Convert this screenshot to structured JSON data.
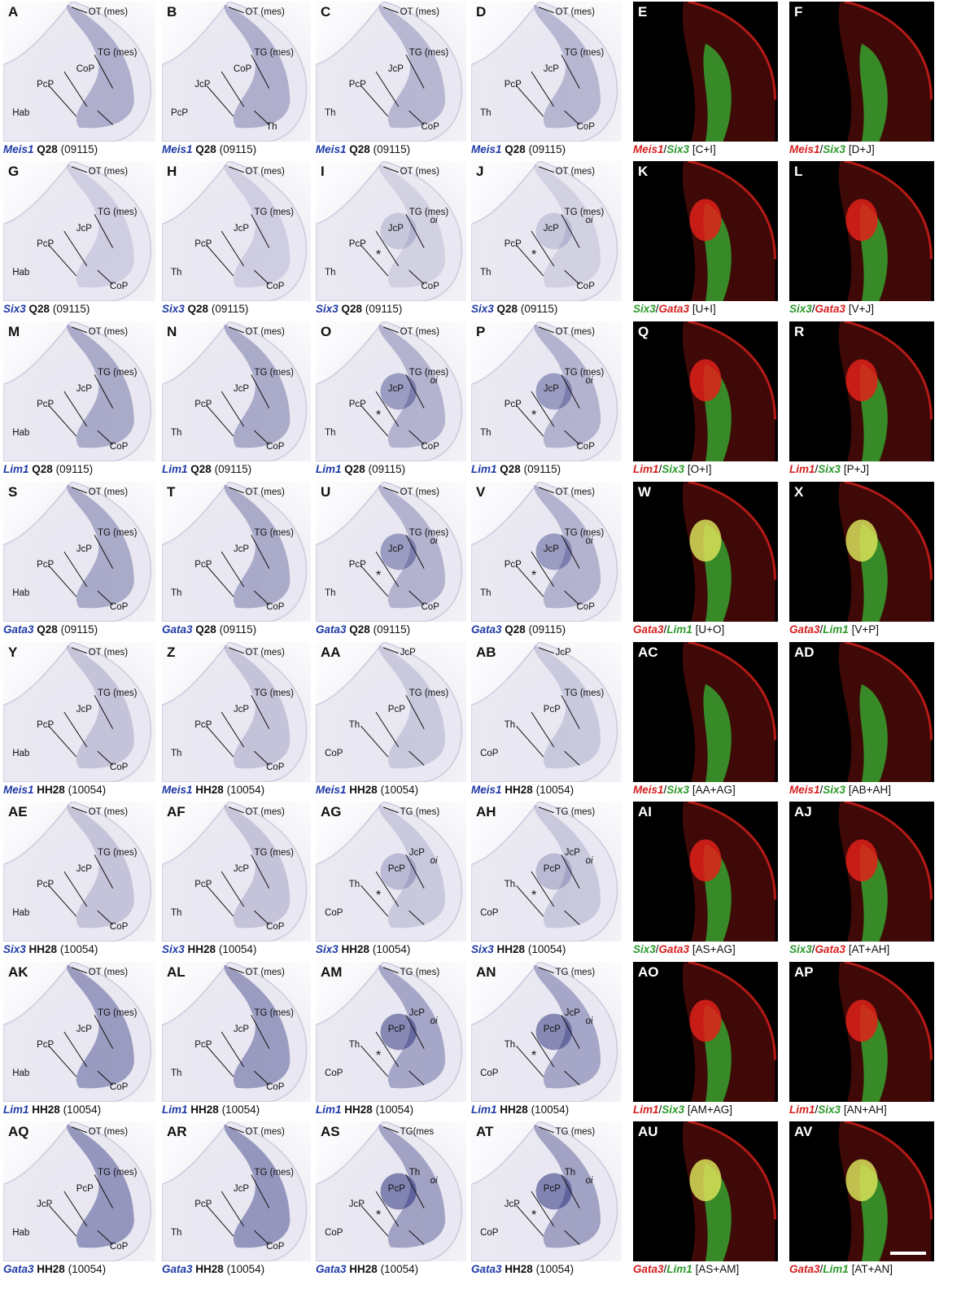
{
  "ish_rows": [
    {
      "panels": [
        {
          "letter": "A",
          "gene": "Meis1",
          "stage": "Q28",
          "num": "(09115)",
          "labels": [
            "OT (mes)",
            "TG (mes)",
            "CoP",
            "PcP",
            "Hab"
          ]
        },
        {
          "letter": "B",
          "gene": "Meis1",
          "stage": "Q28",
          "num": "(09115)",
          "labels": [
            "OT (mes)",
            "TG (mes)",
            "CoP",
            "JcP",
            "PcP",
            "Th"
          ]
        },
        {
          "letter": "C",
          "gene": "Meis1",
          "stage": "Q28",
          "num": "(09115)",
          "labels": [
            "OT (mes)",
            "TG (mes)",
            "JcP",
            "PcP",
            "Th",
            "CoP"
          ]
        },
        {
          "letter": "D",
          "gene": "Meis1",
          "stage": "Q28",
          "num": "(09115)",
          "labels": [
            "OT (mes)",
            "TG (mes)",
            "JcP",
            "PcP",
            "Th",
            "CoP"
          ]
        }
      ]
    },
    {
      "panels": [
        {
          "letter": "G",
          "gene": "Six3",
          "stage": "Q28",
          "num": "(09115)",
          "labels": [
            "OT (mes)",
            "TG (mes)",
            "JcP",
            "PcP",
            "Hab",
            "CoP"
          ]
        },
        {
          "letter": "H",
          "gene": "Six3",
          "stage": "Q28",
          "num": "(09115)",
          "labels": [
            "OT (mes)",
            "TG (mes)",
            "JcP",
            "PcP",
            "Th",
            "CoP"
          ]
        },
        {
          "letter": "I",
          "gene": "Six3",
          "stage": "Q28",
          "num": "(09115)",
          "labels": [
            "OT (mes)",
            "TG (mes)",
            "JcP",
            "PcP",
            "Th",
            "CoP"
          ]
        },
        {
          "letter": "J",
          "gene": "Six3",
          "stage": "Q28",
          "num": "(09115)",
          "labels": [
            "OT (mes)",
            "TG (mes)",
            "JcP",
            "PcP",
            "Th",
            "CoP"
          ]
        }
      ]
    },
    {
      "panels": [
        {
          "letter": "M",
          "gene": "Lim1",
          "stage": "Q28",
          "num": "(09115)",
          "labels": [
            "OT (mes)",
            "TG (mes)",
            "JcP",
            "PcP",
            "Hab",
            "CoP"
          ]
        },
        {
          "letter": "N",
          "gene": "Lim1",
          "stage": "Q28",
          "num": "(09115)",
          "labels": [
            "OT (mes)",
            "TG (mes)",
            "JcP",
            "PcP",
            "Th",
            "CoP"
          ]
        },
        {
          "letter": "O",
          "gene": "Lim1",
          "stage": "Q28",
          "num": "(09115)",
          "labels": [
            "OT (mes)",
            "TG (mes)",
            "JcP",
            "PcP",
            "Th",
            "CoP"
          ]
        },
        {
          "letter": "P",
          "gene": "Lim1",
          "stage": "Q28",
          "num": "(09115)",
          "labels": [
            "OT (mes)",
            "TG (mes)",
            "JcP",
            "PcP",
            "Th",
            "CoP"
          ]
        }
      ]
    },
    {
      "panels": [
        {
          "letter": "S",
          "gene": "Gata3",
          "stage": "Q28",
          "num": "(09115)",
          "labels": [
            "OT (mes)",
            "TG (mes)",
            "JcP",
            "PcP",
            "Hab",
            "CoP"
          ]
        },
        {
          "letter": "T",
          "gene": "Gata3",
          "stage": "Q28",
          "num": "(09115)",
          "labels": [
            "OT (mes)",
            "TG (mes)",
            "JcP",
            "PcP",
            "Th",
            "CoP"
          ]
        },
        {
          "letter": "U",
          "gene": "Gata3",
          "stage": "Q28",
          "num": "(09115)",
          "labels": [
            "OT (mes)",
            "TG (mes)",
            "JcP",
            "PcP",
            "Th",
            "CoP"
          ]
        },
        {
          "letter": "V",
          "gene": "Gata3",
          "stage": "Q28",
          "num": "(09115)",
          "labels": [
            "OT (mes)",
            "TG (mes)",
            "JcP",
            "PcP",
            "Th",
            "CoP"
          ]
        }
      ]
    },
    {
      "panels": [
        {
          "letter": "Y",
          "gene": "Meis1",
          "stage": "HH28",
          "num": "(10054)",
          "labels": [
            "OT (mes)",
            "TG (mes)",
            "JcP",
            "PcP",
            "Hab",
            "CoP"
          ]
        },
        {
          "letter": "Z",
          "gene": "Meis1",
          "stage": "HH28",
          "num": "(10054)",
          "labels": [
            "OT (mes)",
            "TG (mes)",
            "JcP",
            "PcP",
            "Th",
            "CoP"
          ]
        },
        {
          "letter": "AA",
          "gene": "Meis1",
          "stage": "HH28",
          "num": "(10054)",
          "labels": [
            "JcP",
            "TG (mes)",
            "PcP",
            "Th",
            "CoP"
          ]
        },
        {
          "letter": "AB",
          "gene": "Meis1",
          "stage": "HH28",
          "num": "(10054)",
          "labels": [
            "JcP",
            "TG (mes)",
            "PcP",
            "Th",
            "CoP"
          ]
        }
      ]
    },
    {
      "panels": [
        {
          "letter": "AE",
          "gene": "Six3",
          "stage": "HH28",
          "num": "(10054)",
          "labels": [
            "OT (mes)",
            "TG (mes)",
            "JcP",
            "PcP",
            "Hab",
            "CoP"
          ]
        },
        {
          "letter": "AF",
          "gene": "Six3",
          "stage": "HH28",
          "num": "(10054)",
          "labels": [
            "OT (mes)",
            "TG (mes)",
            "JcP",
            "PcP",
            "Th",
            "CoP"
          ]
        },
        {
          "letter": "AG",
          "gene": "Six3",
          "stage": "HH28",
          "num": "(10054)",
          "labels": [
            "TG (mes)",
            "JcP",
            "PcP",
            "Th",
            "CoP"
          ]
        },
        {
          "letter": "AH",
          "gene": "Six3",
          "stage": "HH28",
          "num": "(10054)",
          "labels": [
            "TG (mes)",
            "JcP",
            "PcP",
            "Th",
            "CoP"
          ]
        }
      ]
    },
    {
      "panels": [
        {
          "letter": "AK",
          "gene": "Lim1",
          "stage": "HH28",
          "num": "(10054)",
          "labels": [
            "OT (mes)",
            "TG (mes)",
            "JcP",
            "PcP",
            "Hab",
            "CoP"
          ]
        },
        {
          "letter": "AL",
          "gene": "Lim1",
          "stage": "HH28",
          "num": "(10054)",
          "labels": [
            "OT (mes)",
            "TG (mes)",
            "JcP",
            "PcP",
            "Th",
            "CoP"
          ]
        },
        {
          "letter": "AM",
          "gene": "Lim1",
          "stage": "HH28",
          "num": "(10054)",
          "labels": [
            "TG (mes)",
            "JcP",
            "PcP",
            "Th",
            "CoP"
          ]
        },
        {
          "letter": "AN",
          "gene": "Lim1",
          "stage": "HH28",
          "num": "(10054)",
          "labels": [
            "TG (mes)",
            "JcP",
            "PcP",
            "Th",
            "CoP"
          ]
        }
      ]
    },
    {
      "panels": [
        {
          "letter": "AQ",
          "gene": "Gata3",
          "stage": "HH28",
          "num": "(10054)",
          "labels": [
            "OT (mes)",
            "TG (mes)",
            "PcP",
            "JcP",
            "Hab",
            "CoP"
          ]
        },
        {
          "letter": "AR",
          "gene": "Gata3",
          "stage": "HH28",
          "num": "(10054)",
          "labels": [
            "OT (mes)",
            "TG (mes)",
            "JcP",
            "PcP",
            "Th",
            "CoP"
          ]
        },
        {
          "letter": "AS",
          "gene": "Gata3",
          "stage": "HH28",
          "num": "(10054)",
          "labels": [
            "TG(mes",
            "Th",
            "PcP",
            "JcP",
            "CoP"
          ]
        },
        {
          "letter": "AT",
          "gene": "Gata3",
          "stage": "HH28",
          "num": "(10054)",
          "labels": [
            "TG (mes)",
            "Th",
            "PcP",
            "JcP",
            "CoP"
          ]
        }
      ]
    }
  ],
  "fluor_rows": [
    [
      {
        "letter": "E",
        "g1": "Meis1",
        "c1": "red",
        "g2": "Six3",
        "c2": "green",
        "ref": "[C+I]"
      },
      {
        "letter": "F",
        "g1": "Meis1",
        "c1": "red",
        "g2": "Six3",
        "c2": "green",
        "ref": "[D+J]"
      }
    ],
    [
      {
        "letter": "K",
        "g1": "Six3",
        "c1": "green",
        "g2": "Gata3",
        "c2": "red",
        "ref": "[U+I]"
      },
      {
        "letter": "L",
        "g1": "Six3",
        "c1": "green",
        "g2": "Gata3",
        "c2": "red",
        "ref": "[V+J]"
      }
    ],
    [
      {
        "letter": "Q",
        "g1": "Lim1",
        "c1": "red",
        "g2": "Six3",
        "c2": "green",
        "ref": "[O+I]"
      },
      {
        "letter": "R",
        "g1": "Lim1",
        "c1": "red",
        "g2": "Six3",
        "c2": "green",
        "ref": "[P+J]"
      }
    ],
    [
      {
        "letter": "W",
        "g1": "Gata3",
        "c1": "red",
        "g2": "Lim1",
        "c2": "green",
        "ref": "[U+O]"
      },
      {
        "letter": "X",
        "g1": "Gata3",
        "c1": "red",
        "g2": "Lim1",
        "c2": "green",
        "ref": "[V+P]"
      }
    ],
    [
      {
        "letter": "AC",
        "g1": "Meis1",
        "c1": "red",
        "g2": "Six3",
        "c2": "green",
        "ref": "[AA+AG]"
      },
      {
        "letter": "AD",
        "g1": "Meis1",
        "c1": "red",
        "g2": "Six3",
        "c2": "green",
        "ref": "[AB+AH]"
      }
    ],
    [
      {
        "letter": "AI",
        "g1": "Six3",
        "c1": "green",
        "g2": "Gata3",
        "c2": "red",
        "ref": "[AS+AG]"
      },
      {
        "letter": "AJ",
        "g1": "Six3",
        "c1": "green",
        "g2": "Gata3",
        "c2": "red",
        "ref": "[AT+AH]"
      }
    ],
    [
      {
        "letter": "AO",
        "g1": "Lim1",
        "c1": "red",
        "g2": "Six3",
        "c2": "green",
        "ref": "[AM+AG]"
      },
      {
        "letter": "AP",
        "g1": "Lim1",
        "c1": "red",
        "g2": "Six3",
        "c2": "green",
        "ref": "[AN+AH]"
      }
    ],
    [
      {
        "letter": "AU",
        "g1": "Gata3",
        "c1": "red",
        "g2": "Lim1",
        "c2": "green",
        "ref": "[AS+AM]"
      },
      {
        "letter": "AV",
        "g1": "Gata3",
        "c1": "red",
        "g2": "Lim1",
        "c2": "green",
        "ref": "[AT+AN]"
      }
    ]
  ],
  "extra_marks": {
    "asterisk": "*",
    "oi_label": "oi"
  },
  "colors": {
    "ish_stain": "#2a2f7a",
    "gene_blue": "#1f3aa6",
    "fluor_red": "#e0201a",
    "fluor_green": "#34c234",
    "arrowhead_green": "#3aa63a"
  }
}
